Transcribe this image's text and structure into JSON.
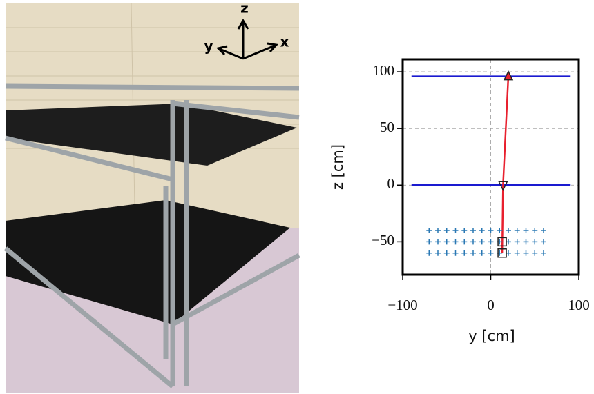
{
  "photo": {
    "axis_labels": [
      "z",
      "y",
      "x"
    ]
  },
  "chart_data": {
    "type": "scatter",
    "xlabel": "y [cm]",
    "ylabel": "z [cm]",
    "xlim": [
      -100,
      100
    ],
    "ylim": [
      -79,
      111
    ],
    "xticks": [
      {
        "value": -100,
        "label": "−100"
      },
      0,
      100
    ],
    "yticks": [
      {
        "value": -50,
        "label": "−50"
      },
      0,
      50,
      100
    ],
    "grid": true,
    "series": [
      {
        "style": "line",
        "color": "#1a1ad0",
        "x": [
          -90,
          90
        ],
        "values": [
          96,
          96
        ]
      },
      {
        "style": "line",
        "color": "#1a1ad0",
        "x": [
          -90,
          90
        ],
        "values": [
          0,
          0
        ]
      },
      {
        "style": "line",
        "color": "#e8202e",
        "x": [
          20,
          14,
          13
        ],
        "values": [
          96,
          0,
          -60
        ]
      },
      {
        "style": "plus",
        "color": "#2a78b4",
        "x": [
          -70,
          -60,
          -50,
          -40,
          -30,
          -20,
          -10,
          0,
          10,
          20,
          30,
          40,
          50,
          60,
          -70,
          -60,
          -50,
          -40,
          -30,
          -20,
          -10,
          0,
          10,
          20,
          30,
          40,
          50,
          60,
          -70,
          -60,
          -50,
          -40,
          -30,
          -20,
          -10,
          0,
          10,
          20,
          30,
          40,
          50,
          60
        ],
        "values": [
          -40,
          -40,
          -40,
          -40,
          -40,
          -40,
          -40,
          -40,
          -40,
          -40,
          -40,
          -40,
          -40,
          -40,
          -50,
          -50,
          -50,
          -50,
          -50,
          -50,
          -50,
          -50,
          -50,
          -50,
          -50,
          -50,
          -50,
          -50,
          -60,
          -60,
          -60,
          -60,
          -60,
          -60,
          -60,
          -60,
          -60,
          -60,
          -60,
          -60,
          -60,
          -60
        ]
      }
    ],
    "markers": [
      {
        "shape": "triangle-up",
        "color": "#e8202e",
        "x": 20,
        "y": 96
      },
      {
        "shape": "triangle-down",
        "color": "none",
        "x": 14,
        "y": 0
      },
      {
        "shape": "square",
        "color": "none",
        "x": 13,
        "y": -50
      },
      {
        "shape": "square",
        "color": "none",
        "x": 13,
        "y": -60
      }
    ]
  }
}
